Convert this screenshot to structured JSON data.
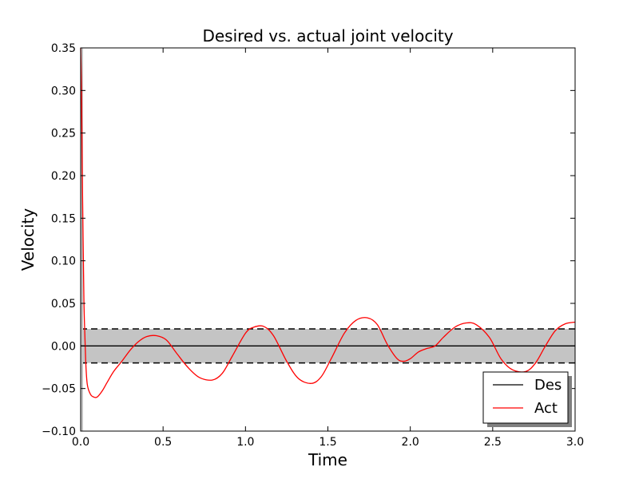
{
  "chart_data": {
    "type": "line",
    "title": "Desired vs. actual joint velocity",
    "xlabel": "Time",
    "ylabel": "Velocity",
    "xlim": [
      0.0,
      3.0
    ],
    "ylim": [
      -0.1,
      0.35
    ],
    "xticks": [
      "0.0",
      "0.5",
      "1.0",
      "1.5",
      "2.0",
      "2.5",
      "3.0"
    ],
    "xtick_values": [
      0.0,
      0.5,
      1.0,
      1.5,
      2.0,
      2.5,
      3.0
    ],
    "yticks": [
      "−0.10",
      "−0.05",
      "0.00",
      "0.05",
      "0.10",
      "0.15",
      "0.20",
      "0.25",
      "0.30",
      "0.35"
    ],
    "ytick_values": [
      -0.1,
      -0.05,
      0.0,
      0.05,
      0.1,
      0.15,
      0.2,
      0.25,
      0.3,
      0.35
    ],
    "grid": false,
    "legend_position": "bottom-right",
    "tolerance_band": {
      "lower": -0.02,
      "upper": 0.02,
      "fill_color": "#c4c4c4",
      "line_style": "dashed"
    },
    "series": [
      {
        "name": "Des",
        "color": "#000000",
        "x": [
          0.0,
          3.0
        ],
        "y": [
          0.0,
          0.0
        ]
      },
      {
        "name": "Act",
        "color": "#ff0000",
        "x": [
          0.0,
          0.005,
          0.01,
          0.015,
          0.02,
          0.03,
          0.04,
          0.06,
          0.08,
          0.1,
          0.13,
          0.16,
          0.2,
          0.25,
          0.3,
          0.35,
          0.4,
          0.46,
          0.52,
          0.58,
          0.65,
          0.72,
          0.8,
          0.86,
          0.92,
          1.0,
          1.05,
          1.11,
          1.17,
          1.25,
          1.32,
          1.4,
          1.46,
          1.52,
          1.6,
          1.67,
          1.74,
          1.8,
          1.86,
          1.92,
          1.96,
          2.0,
          2.05,
          2.1,
          2.15,
          2.2,
          2.27,
          2.34,
          2.4,
          2.48,
          2.55,
          2.62,
          2.7,
          2.76,
          2.82,
          2.88,
          2.94,
          3.0
        ],
        "y": [
          0.35,
          0.3,
          0.2,
          0.12,
          0.05,
          -0.015,
          -0.045,
          -0.057,
          -0.06,
          -0.06,
          -0.053,
          -0.043,
          -0.03,
          -0.018,
          -0.005,
          0.005,
          0.011,
          0.012,
          0.007,
          -0.008,
          -0.025,
          -0.037,
          -0.04,
          -0.032,
          -0.012,
          0.015,
          0.022,
          0.023,
          0.012,
          -0.018,
          -0.038,
          -0.044,
          -0.036,
          -0.015,
          0.015,
          0.03,
          0.033,
          0.025,
          0.002,
          -0.015,
          -0.018,
          -0.015,
          -0.007,
          -0.003,
          0.0,
          0.01,
          0.022,
          0.027,
          0.025,
          0.01,
          -0.015,
          -0.028,
          -0.03,
          -0.02,
          0.0,
          0.018,
          0.026,
          0.028
        ]
      }
    ]
  }
}
